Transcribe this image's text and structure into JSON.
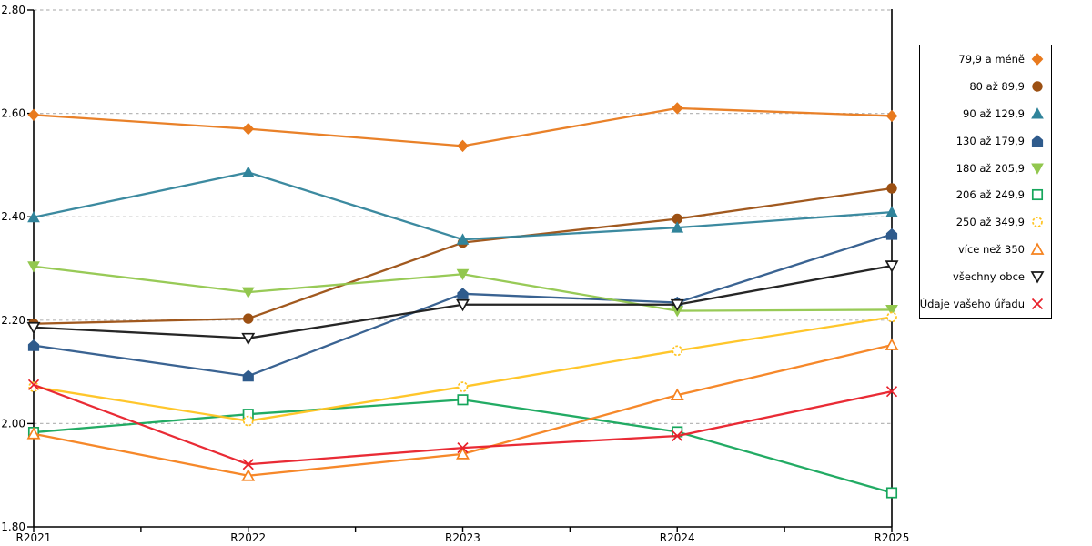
{
  "chart_data": {
    "type": "line",
    "title": "",
    "xlabel": "",
    "ylabel": "",
    "categories": [
      "R2021",
      "R2022",
      "R2023",
      "R2024",
      "R2025"
    ],
    "y_axis": {
      "min": 1.8,
      "max": 2.8,
      "step": 0.2,
      "tick_labels": [
        "1.80",
        "2.00",
        "2.20",
        "2.40",
        "2.60",
        "2.80"
      ]
    },
    "grid": "dashed-horizontal",
    "legend_position": "right",
    "series": [
      {
        "name": "79,9 a méně",
        "marker": "diamond",
        "style": "solid",
        "color": "#E87A1E",
        "values": [
          2.597,
          2.57,
          2.537,
          2.61,
          2.595
        ]
      },
      {
        "name": "80 až 89,9",
        "marker": "circle",
        "style": "solid",
        "color": "#9C5013",
        "values": [
          2.193,
          2.203,
          2.35,
          2.396,
          2.455
        ]
      },
      {
        "name": "90 až 129,9",
        "marker": "triangle-up",
        "style": "solid",
        "color": "#31849B",
        "values": [
          2.399,
          2.486,
          2.356,
          2.379,
          2.409
        ]
      },
      {
        "name": "130 až 179,9",
        "marker": "pentagon",
        "style": "solid",
        "color": "#2F5B8C",
        "values": [
          2.151,
          2.092,
          2.251,
          2.234,
          2.366
        ]
      },
      {
        "name": "180 až 205,9",
        "marker": "triangle-down",
        "style": "solid",
        "color": "#92C74E",
        "values": [
          2.304,
          2.254,
          2.289,
          2.218,
          2.22
        ]
      },
      {
        "name": "206 až 249,9",
        "marker": "square",
        "style": "hollow",
        "color": "#16A65C",
        "values": [
          1.983,
          2.018,
          2.046,
          1.984,
          1.866
        ]
      },
      {
        "name": "250 až 349,9",
        "marker": "circle-dashed",
        "style": "hollow",
        "color": "#FFC320",
        "values": [
          2.071,
          2.005,
          2.071,
          2.141,
          2.206
        ]
      },
      {
        "name": "více než 350",
        "marker": "triangle-up",
        "style": "hollow",
        "color": "#F5821F",
        "values": [
          1.98,
          1.899,
          1.941,
          2.055,
          2.152
        ]
      },
      {
        "name": "všechny obce",
        "marker": "triangle-down",
        "style": "hollow",
        "color": "#1A1A1A",
        "values": [
          2.186,
          2.165,
          2.23,
          2.23,
          2.305
        ]
      },
      {
        "name": "Údaje vašeho úřadu",
        "marker": "x",
        "style": "hollow",
        "color": "#E8202A",
        "values": [
          2.075,
          1.921,
          1.953,
          1.976,
          2.062
        ]
      }
    ]
  },
  "colors": {
    "background": "#FFFFFF",
    "axis": "#000000",
    "gridline": "#B8B8B8",
    "legend_border": "#000000",
    "tick_text": "#000000"
  }
}
